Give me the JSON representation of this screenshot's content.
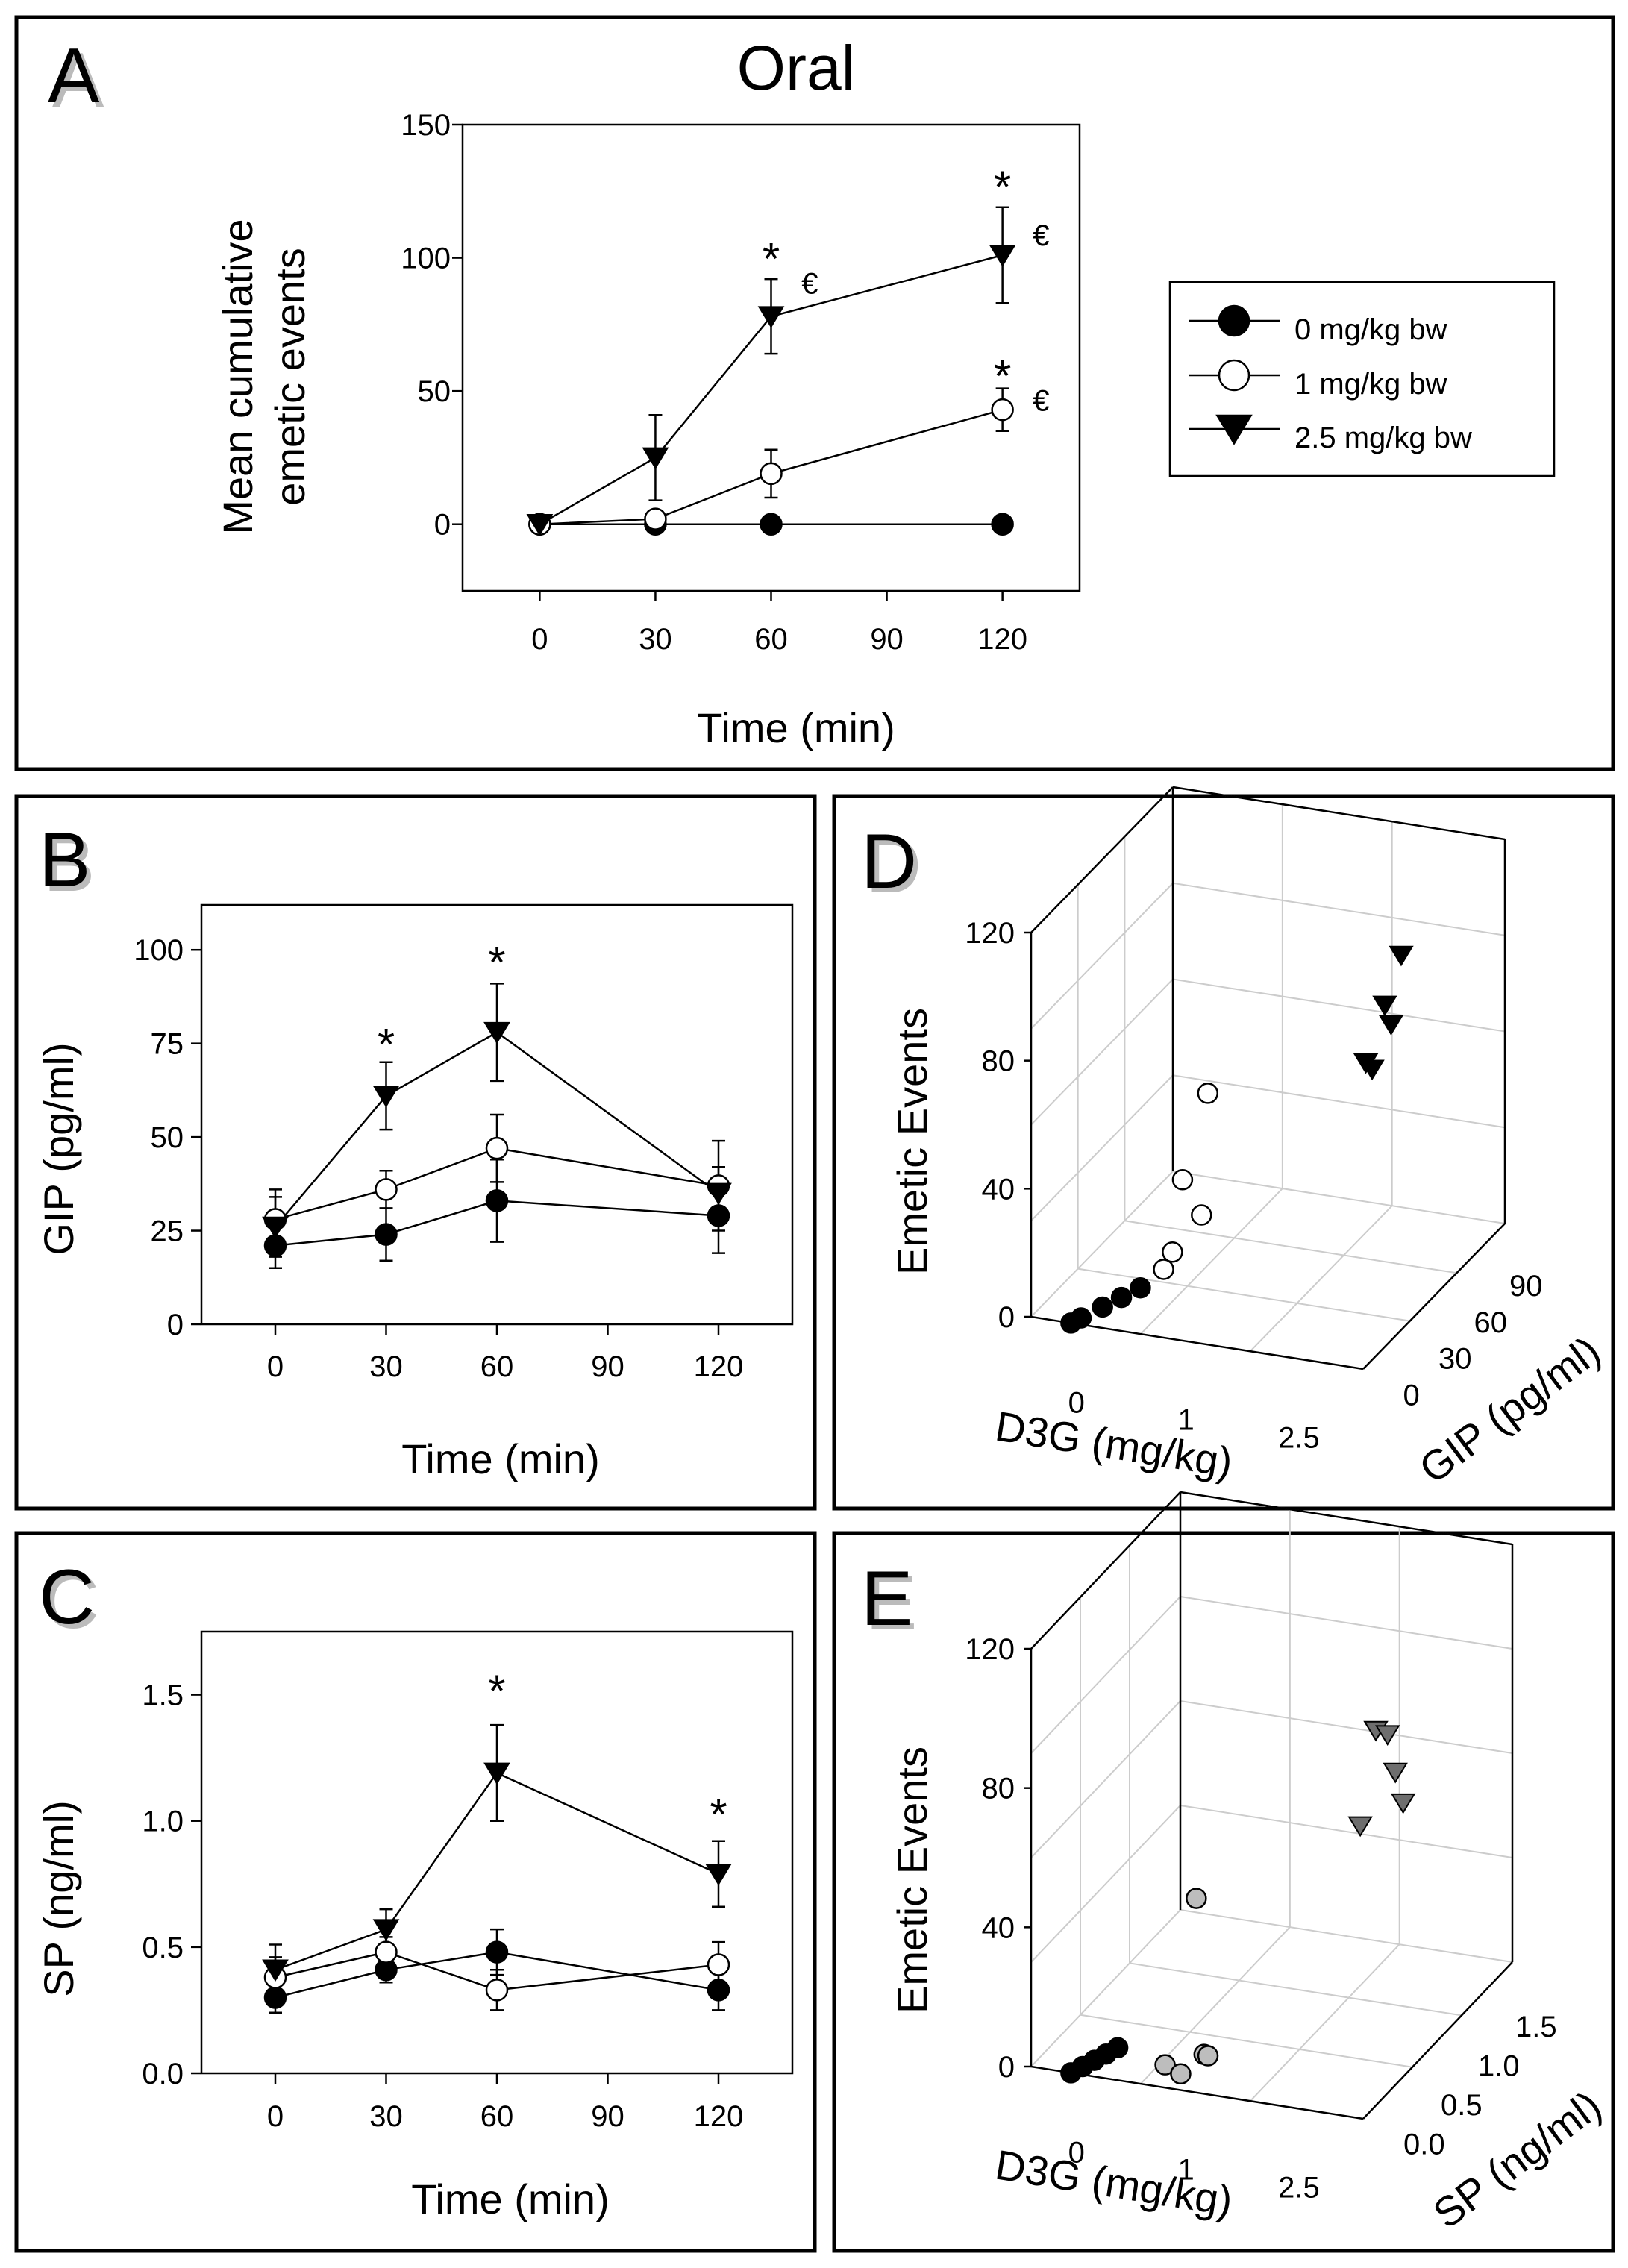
{
  "series_styles": {
    "dose0": {
      "marker": "filled-circle",
      "fill": "#000000"
    },
    "dose1": {
      "marker": "open-circle",
      "fill": "#ffffff"
    },
    "dose25": {
      "marker": "filled-triangle-down",
      "fill": "#000000"
    },
    "e_circle_gray": "#bdbdbd",
    "e_triangle_gray": "#6e6e6e"
  },
  "chart_data": [
    {
      "id": "A",
      "panel_label": "A",
      "type": "line",
      "title": "Oral",
      "xlabel": "Time (min)",
      "ylabel_lines": [
        "Mean cumulative",
        "emetic events"
      ],
      "xlim": [
        -20,
        140
      ],
      "ylim": [
        -25,
        150
      ],
      "xticks": [
        0,
        30,
        60,
        90,
        120
      ],
      "xticklabels": [
        "0",
        "30",
        "60",
        "90",
        "120"
      ],
      "yticks": [
        0,
        50,
        100,
        150
      ],
      "yticklabels": [
        "0",
        "50",
        "100",
        "150"
      ],
      "x": [
        0,
        30,
        60,
        120
      ],
      "series": [
        {
          "name": "0 mg/kg bw",
          "style": "dose0",
          "values": [
            0,
            0,
            0,
            0
          ],
          "err": [
            0,
            0,
            0,
            0
          ]
        },
        {
          "name": "1 mg/kg bw",
          "style": "dose1",
          "values": [
            0,
            2,
            19,
            43
          ],
          "err": [
            0,
            2,
            9,
            8
          ]
        },
        {
          "name": "2.5 mg/kg bw",
          "style": "dose25",
          "values": [
            0,
            25,
            78,
            101
          ],
          "err": [
            0,
            16,
            14,
            18
          ]
        }
      ],
      "annotations": [
        {
          "text": "*",
          "x": 60,
          "y": 100
        },
        {
          "text": "€",
          "x": 70,
          "y": 90
        },
        {
          "text": "*",
          "x": 120,
          "y": 127
        },
        {
          "text": "€",
          "x": 130,
          "y": 108
        },
        {
          "text": "*",
          "x": 120,
          "y": 56
        },
        {
          "text": "€",
          "x": 130,
          "y": 46
        }
      ],
      "legend": {
        "placement": "right",
        "entries": [
          "0 mg/kg bw",
          "1 mg/kg bw",
          "2.5 mg/kg bw"
        ]
      }
    },
    {
      "id": "B",
      "panel_label": "B",
      "type": "line",
      "xlabel": "Time (min)",
      "ylabel": "GIP (pg/ml)",
      "xlim": [
        -20,
        140
      ],
      "ylim": [
        0,
        112
      ],
      "xticks": [
        0,
        30,
        60,
        90,
        120
      ],
      "xticklabels": [
        "0",
        "30",
        "60",
        "90",
        "120"
      ],
      "yticks": [
        0,
        25,
        50,
        75,
        100
      ],
      "yticklabels": [
        "0",
        "25",
        "50",
        "75",
        "100"
      ],
      "x": [
        0,
        30,
        60,
        120
      ],
      "series": [
        {
          "name": "0 mg/kg bw",
          "style": "dose0",
          "values": [
            21,
            24,
            33,
            29
          ],
          "err": [
            6,
            7,
            11,
            10
          ]
        },
        {
          "name": "1 mg/kg bw",
          "style": "dose1",
          "values": [
            28,
            36,
            47,
            37
          ],
          "err": [
            8,
            5,
            9,
            12
          ]
        },
        {
          "name": "2.5 mg/kg bw",
          "style": "dose25",
          "values": [
            26,
            61,
            78,
            35
          ],
          "err": [
            8,
            9,
            13,
            7
          ]
        }
      ],
      "annotations": [
        {
          "text": "*",
          "x": 30,
          "y": 75
        },
        {
          "text": "*",
          "x": 60,
          "y": 97
        }
      ]
    },
    {
      "id": "C",
      "panel_label": "C",
      "type": "line",
      "xlabel": "Time (min)",
      "ylabel": "SP (ng/ml)",
      "xlim": [
        -20,
        140
      ],
      "ylim": [
        0,
        1.75
      ],
      "xticks": [
        0,
        30,
        60,
        90,
        120
      ],
      "xticklabels": [
        "0",
        "30",
        "60",
        "90",
        "120"
      ],
      "yticks": [
        0,
        0.5,
        1.0,
        1.5
      ],
      "yticklabels": [
        "0.0",
        "0.5",
        "1.0",
        "1.5"
      ],
      "x": [
        0,
        30,
        60,
        120
      ],
      "series": [
        {
          "name": "0 mg/kg bw",
          "style": "dose0",
          "values": [
            0.3,
            0.41,
            0.48,
            0.33
          ],
          "err": [
            0.06,
            0.05,
            0.09,
            0.08
          ]
        },
        {
          "name": "1 mg/kg bw",
          "style": "dose1",
          "values": [
            0.38,
            0.48,
            0.33,
            0.43
          ],
          "err": [
            0.08,
            0.06,
            0.08,
            0.09
          ]
        },
        {
          "name": "2.5 mg/kg bw",
          "style": "dose25",
          "values": [
            0.41,
            0.57,
            1.19,
            0.79
          ],
          "err": [
            0.1,
            0.08,
            0.19,
            0.13
          ]
        }
      ],
      "annotations": [
        {
          "text": "*",
          "x": 60,
          "y": 1.52
        },
        {
          "text": "*",
          "x": 120,
          "y": 1.03
        }
      ]
    },
    {
      "id": "D",
      "panel_label": "D",
      "type": "scatter",
      "dims": 3,
      "xlabel": "D3G (mg/kg)",
      "zlabel": "GIP (pg/ml)",
      "ylabel": "Emetic Events",
      "xticklabels": [
        "0",
        "1",
        "2.5"
      ],
      "zticklabels": [
        "0",
        "30",
        "60",
        "90"
      ],
      "yticks": [
        0,
        40,
        80,
        120
      ],
      "yticklabels": [
        "0",
        "40",
        "80",
        "120"
      ],
      "ylim": [
        0,
        120
      ],
      "points": [
        {
          "dose": 0,
          "gip": 0,
          "emetic": 0,
          "style": "dose0"
        },
        {
          "dose": 0,
          "gip": 8,
          "emetic": 0,
          "style": "dose0"
        },
        {
          "dose": 0,
          "gip": 25,
          "emetic": 0,
          "style": "dose0"
        },
        {
          "dose": 0,
          "gip": 40,
          "emetic": 0,
          "style": "dose0"
        },
        {
          "dose": 0,
          "gip": 55,
          "emetic": 0,
          "style": "dose0"
        },
        {
          "dose": 1,
          "gip": 5,
          "emetic": 20,
          "style": "dose1"
        },
        {
          "dose": 1,
          "gip": 12,
          "emetic": 24,
          "style": "dose1"
        },
        {
          "dose": 1,
          "gip": 35,
          "emetic": 31,
          "style": "dose1"
        },
        {
          "dose": 1,
          "gip": 20,
          "emetic": 45,
          "style": "dose1"
        },
        {
          "dose": 1,
          "gip": 40,
          "emetic": 68,
          "style": "dose1"
        },
        {
          "dose": 2.5,
          "gip": 60,
          "emetic": 80,
          "style": "dose25"
        },
        {
          "dose": 2.5,
          "gip": 65,
          "emetic": 77,
          "style": "dose25"
        },
        {
          "dose": 2.5,
          "gip": 75,
          "emetic": 95,
          "style": "dose25"
        },
        {
          "dose": 2.5,
          "gip": 80,
          "emetic": 88,
          "style": "dose25"
        },
        {
          "dose": 2.5,
          "gip": 88,
          "emetic": 108,
          "style": "dose25"
        }
      ]
    },
    {
      "id": "E",
      "panel_label": "E",
      "type": "scatter",
      "dims": 3,
      "xlabel": "D3G (mg/kg)",
      "zlabel": "SP (ng/ml)",
      "ylabel": "Emetic Events",
      "xticklabels": [
        "0",
        "1",
        "2.5"
      ],
      "zticklabels": [
        "0.0",
        "0.5",
        "1.0",
        "1.5"
      ],
      "yticks": [
        0,
        40,
        80,
        120
      ],
      "yticklabels": [
        "0",
        "40",
        "80",
        "120"
      ],
      "ylim": [
        0,
        120
      ],
      "points": [
        {
          "dose": 0,
          "sp": 0.0,
          "emetic": 0,
          "style": "dose0"
        },
        {
          "dose": 0,
          "sp": 0.15,
          "emetic": 0,
          "style": "dose0"
        },
        {
          "dose": 0,
          "sp": 0.3,
          "emetic": 0,
          "style": "dose0"
        },
        {
          "dose": 0,
          "sp": 0.45,
          "emetic": 0,
          "style": "dose0"
        },
        {
          "dose": 0,
          "sp": 0.6,
          "emetic": 0,
          "style": "dose0"
        },
        {
          "dose": 1,
          "sp": 0.1,
          "emetic": 5,
          "style": "dose1"
        },
        {
          "dose": 1,
          "sp": 0.3,
          "emetic": 0,
          "style": "dose1"
        },
        {
          "dose": 1,
          "sp": 0.6,
          "emetic": 2,
          "style": "dose1"
        },
        {
          "dose": 1,
          "sp": 0.65,
          "emetic": 1,
          "style": "dose1"
        },
        {
          "dose": 1,
          "sp": 0.5,
          "emetic": 48,
          "style": "dose1"
        },
        {
          "dose": 2.5,
          "sp": 0.9,
          "emetic": 70,
          "style": "dose25"
        },
        {
          "dose": 2.5,
          "sp": 1.1,
          "emetic": 95,
          "style": "dose25"
        },
        {
          "dose": 2.5,
          "sp": 1.25,
          "emetic": 92,
          "style": "dose25"
        },
        {
          "dose": 2.5,
          "sp": 1.35,
          "emetic": 80,
          "style": "dose25"
        },
        {
          "dose": 2.5,
          "sp": 1.45,
          "emetic": 70,
          "style": "dose25"
        }
      ]
    }
  ]
}
